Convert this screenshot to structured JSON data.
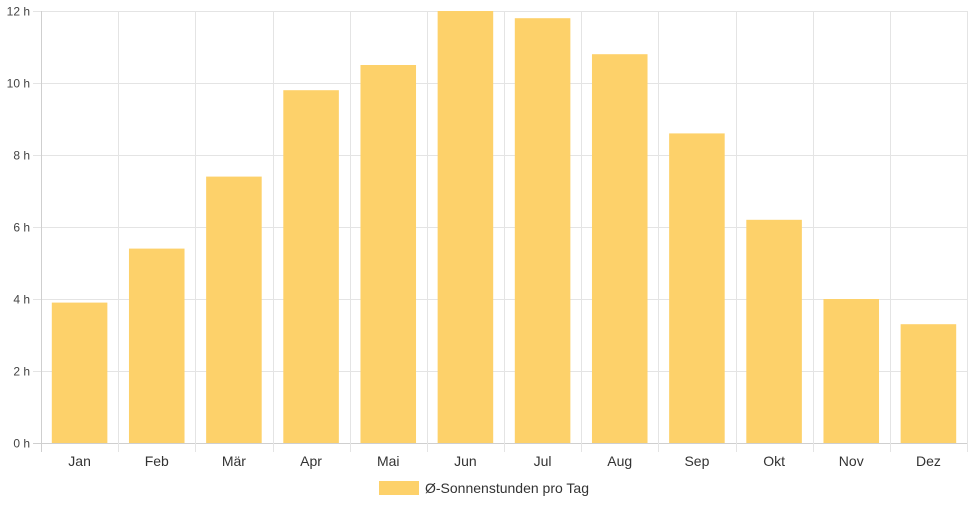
{
  "chart_data": {
    "type": "bar",
    "categories": [
      "Jan",
      "Feb",
      "Mär",
      "Apr",
      "Mai",
      "Jun",
      "Jul",
      "Aug",
      "Sep",
      "Okt",
      "Nov",
      "Dez"
    ],
    "series": [
      {
        "name": "Ø-Sonnenstunden pro Tag",
        "values": [
          3.9,
          5.4,
          7.4,
          9.8,
          10.5,
          12.0,
          11.8,
          10.8,
          8.6,
          6.2,
          4.0,
          3.3
        ],
        "color": "#fdd16a"
      }
    ],
    "yticks": [
      "0 h",
      "2 h",
      "4 h",
      "6 h",
      "8 h",
      "10 h",
      "12 h"
    ],
    "ylim": [
      0,
      12
    ],
    "grid": true,
    "legend_position": "bottom"
  }
}
